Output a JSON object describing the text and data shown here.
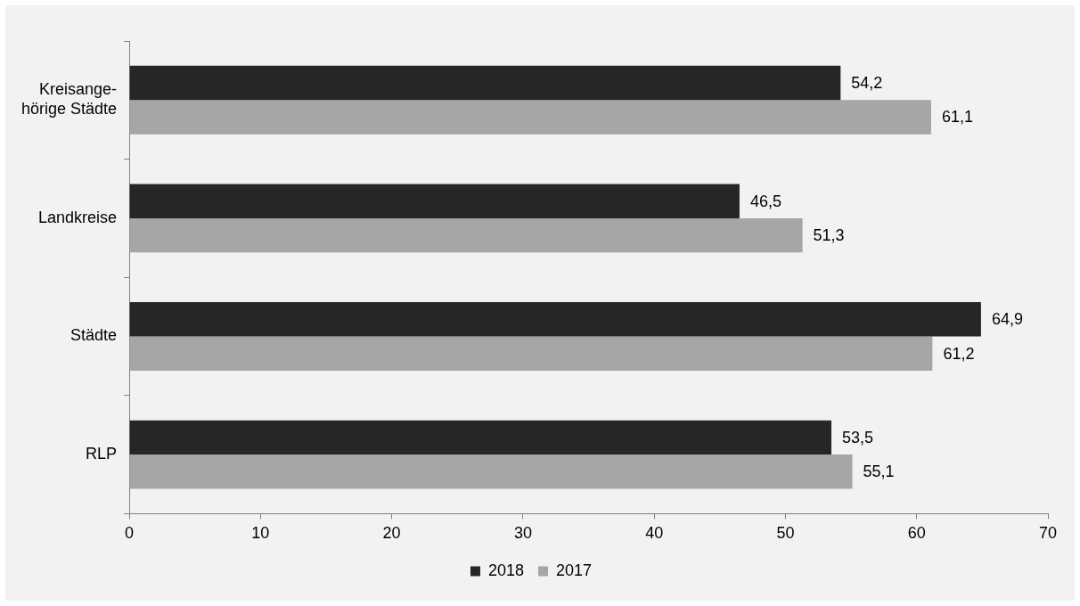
{
  "chart_data": {
    "type": "bar",
    "orientation": "horizontal",
    "categories": [
      "Kreisange-hörige Städte",
      "Landkreise",
      "Städte",
      "RLP"
    ],
    "series": [
      {
        "name": "2018",
        "color": "#262626",
        "values": [
          54.2,
          46.5,
          64.9,
          53.5
        ],
        "value_labels": [
          "54,2",
          "46,5",
          "64,9",
          "53,5"
        ]
      },
      {
        "name": "2017",
        "color": "#a6a6a6",
        "values": [
          61.1,
          51.3,
          61.2,
          55.1
        ],
        "value_labels": [
          "61,1",
          "51,3",
          "61,2",
          "55,1"
        ]
      }
    ],
    "xlim": [
      0,
      70
    ],
    "xticks": [
      0,
      10,
      20,
      30,
      40,
      50,
      60,
      70
    ],
    "grid": false,
    "legend": "bottom"
  }
}
